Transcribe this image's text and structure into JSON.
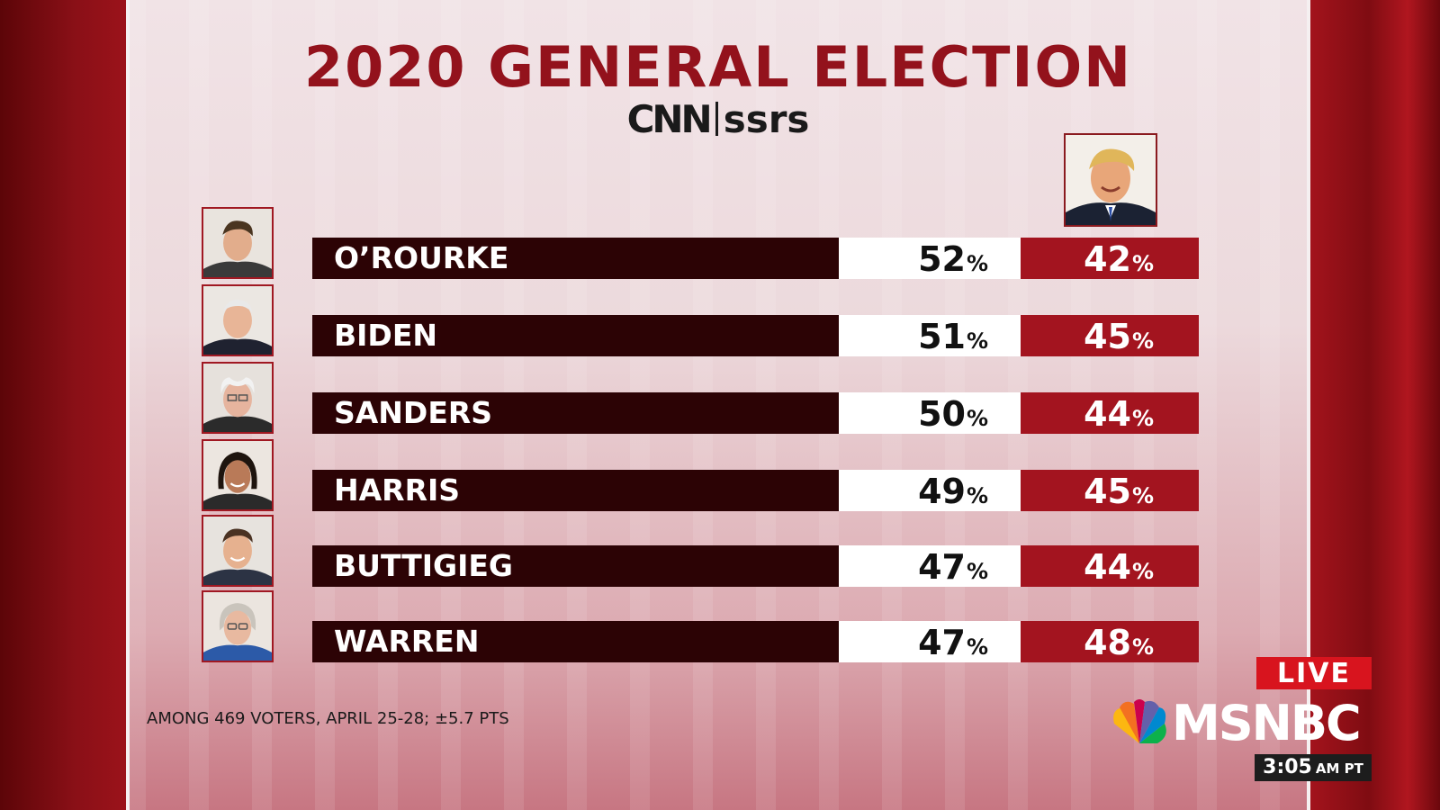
{
  "title": "2020 GENERAL ELECTION",
  "sponsor": {
    "left": "CNN",
    "right": "ssrs"
  },
  "rows": [
    {
      "name": "O’ROURKE",
      "dem": "52",
      "rep": "42"
    },
    {
      "name": "BIDEN",
      "dem": "51",
      "rep": "45"
    },
    {
      "name": "SANDERS",
      "dem": "50",
      "rep": "44"
    },
    {
      "name": "HARRIS",
      "dem": "49",
      "rep": "45"
    },
    {
      "name": "BUTTIGIEG",
      "dem": "47",
      "rep": "44"
    },
    {
      "name": "WARREN",
      "dem": "47",
      "rep": "48"
    }
  ],
  "percent_symbol": "%",
  "footnote": "AMONG 469 VOTERS, APRIL 25-28; ±5.7 PTS",
  "broadcast": {
    "live_label": "LIVE",
    "network": "MSNBC",
    "time": "3:05",
    "time_suffix": "AM PT"
  },
  "colors": {
    "title": "#93121c",
    "name_bar": "#2c0305",
    "republican_cell": "#a3141f",
    "democrat_cell": "#ffffff",
    "live_badge": "#d8141e"
  }
}
